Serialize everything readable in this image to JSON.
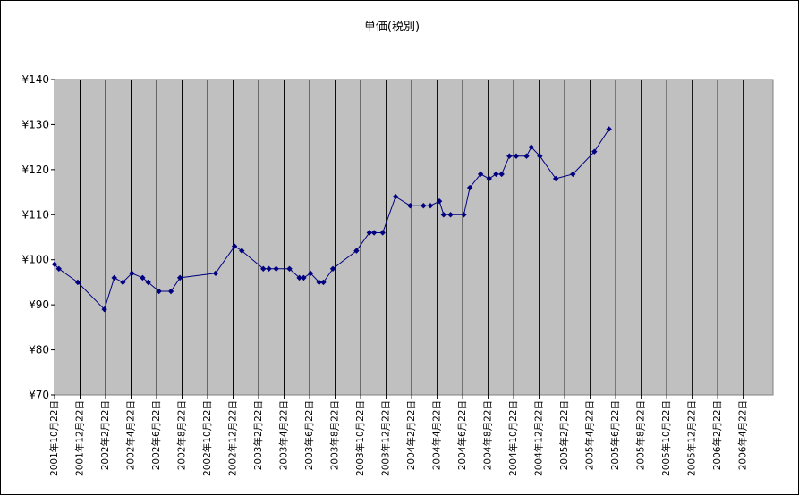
{
  "chart_data": {
    "type": "line",
    "title": "単価(税別)",
    "xlabel": "",
    "ylabel": "",
    "ylim": [
      70,
      140
    ],
    "ytick_values": [
      70,
      80,
      90,
      100,
      110,
      120,
      130,
      140
    ],
    "ytick_labels": [
      "¥70",
      "¥80",
      "¥90",
      "¥100",
      "¥110",
      "¥120",
      "¥130",
      "¥140"
    ],
    "x_tick_labels": [
      "2001年10月22日",
      "2001年12月22日",
      "2002年2月22日",
      "2002年4月22日",
      "2002年6月22日",
      "2002年8月22日",
      "2002年10月22日",
      "2002年12月22日",
      "2003年2月22日",
      "2003年4月22日",
      "2003年6月22日",
      "2003年8月22日",
      "2003年10月22日",
      "2003年12月22日",
      "2004年2月22日",
      "2004年4月22日",
      "2004年6月22日",
      "2004年8月22日",
      "2004年10月22日",
      "2004年12月22日",
      "2005年2月22日",
      "2005年4月22日",
      "2005年6月22日",
      "2005年8月22日",
      "2005年10月22日",
      "2005年12月22日",
      "2006年2月22日",
      "2006年4月22日"
    ],
    "x_start": "2001-10-22",
    "x_end": "2006-05-22",
    "grid": "vertical lines at each tick",
    "legend": "none",
    "series": [
      {
        "color": "#000080",
        "points": [
          {
            "x": "2001-10-22",
            "y": 99
          },
          {
            "x": "2001-11-01",
            "y": 98
          },
          {
            "x": "2001-12-15",
            "y": 95
          },
          {
            "x": "2002-02-15",
            "y": 89
          },
          {
            "x": "2002-03-10",
            "y": 96
          },
          {
            "x": "2002-03-30",
            "y": 95
          },
          {
            "x": "2002-04-20",
            "y": 97
          },
          {
            "x": "2002-05-15",
            "y": 96
          },
          {
            "x": "2002-05-28",
            "y": 95
          },
          {
            "x": "2002-06-22",
            "y": 93
          },
          {
            "x": "2002-07-20",
            "y": 93
          },
          {
            "x": "2002-08-10",
            "y": 96
          },
          {
            "x": "2002-11-01",
            "y": 97
          },
          {
            "x": "2002-12-15",
            "y": 103
          },
          {
            "x": "2003-01-01",
            "y": 102
          },
          {
            "x": "2003-02-20",
            "y": 98
          },
          {
            "x": "2003-03-05",
            "y": 98
          },
          {
            "x": "2003-03-22",
            "y": 98
          },
          {
            "x": "2003-04-22",
            "y": 98
          },
          {
            "x": "2003-05-15",
            "y": 96
          },
          {
            "x": "2003-05-25",
            "y": 96
          },
          {
            "x": "2003-06-10",
            "y": 97
          },
          {
            "x": "2003-06-30",
            "y": 95
          },
          {
            "x": "2003-07-10",
            "y": 95
          },
          {
            "x": "2003-08-01",
            "y": 98
          },
          {
            "x": "2003-09-25",
            "y": 102
          },
          {
            "x": "2003-10-25",
            "y": 106
          },
          {
            "x": "2003-11-05",
            "y": 106
          },
          {
            "x": "2003-11-25",
            "y": 106
          },
          {
            "x": "2003-12-25",
            "y": 114
          },
          {
            "x": "2004-01-28",
            "y": 112
          },
          {
            "x": "2004-02-28",
            "y": 112
          },
          {
            "x": "2004-03-15",
            "y": 112
          },
          {
            "x": "2004-04-05",
            "y": 113
          },
          {
            "x": "2004-04-15",
            "y": 110
          },
          {
            "x": "2004-05-01",
            "y": 110
          },
          {
            "x": "2004-06-01",
            "y": 110
          },
          {
            "x": "2004-06-15",
            "y": 116
          },
          {
            "x": "2004-07-10",
            "y": 119
          },
          {
            "x": "2004-07-30",
            "y": 118
          },
          {
            "x": "2004-08-15",
            "y": 119
          },
          {
            "x": "2004-08-28",
            "y": 119
          },
          {
            "x": "2004-09-15",
            "y": 123
          },
          {
            "x": "2004-10-01",
            "y": 123
          },
          {
            "x": "2004-10-25",
            "y": 123
          },
          {
            "x": "2004-11-05",
            "y": 125
          },
          {
            "x": "2004-11-25",
            "y": 123
          },
          {
            "x": "2005-01-01",
            "y": 118
          },
          {
            "x": "2005-02-10",
            "y": 119
          },
          {
            "x": "2005-04-01",
            "y": 124
          },
          {
            "x": "2005-05-05",
            "y": 129
          }
        ]
      }
    ]
  }
}
